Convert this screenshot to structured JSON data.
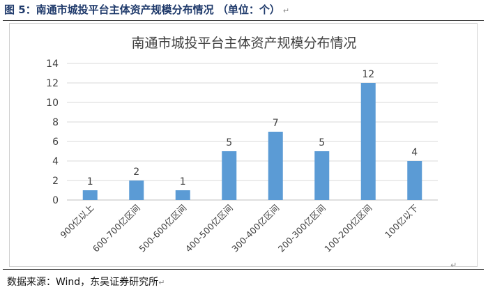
{
  "figure": {
    "caption": "图 5：南通市城投平台主体资产规模分布情况 （单位：个）",
    "source": "数据来源：Wind，东吴证券研究所"
  },
  "chart_data": {
    "type": "bar",
    "title": "南通市城投平台主体资产规模分布情况",
    "categories": [
      "900亿以上",
      "600-700亿区间",
      "500-600亿区间",
      "400-500亿区间",
      "300-400亿区间",
      "200-300亿区间",
      "100-200亿区间",
      "100亿以下"
    ],
    "values": [
      1,
      2,
      1,
      5,
      7,
      5,
      12,
      4
    ],
    "ylim": [
      0,
      14
    ],
    "yticks": [
      0,
      2,
      4,
      6,
      8,
      10,
      12,
      14
    ],
    "grid": true,
    "legend": "none",
    "bar_color": "#5B9BD5",
    "grid_color": "#D9D9D9",
    "text_color": "#404040"
  }
}
